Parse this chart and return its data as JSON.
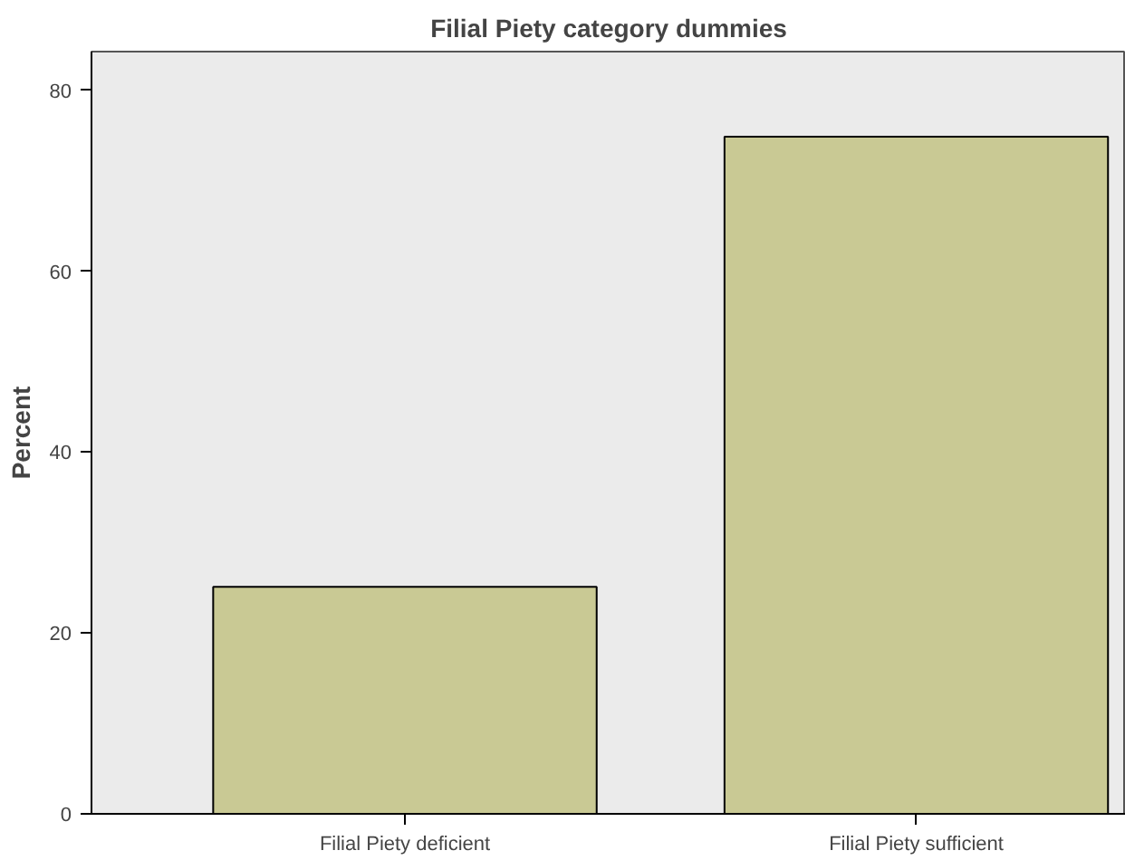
{
  "chart_data": {
    "type": "bar",
    "title": "Filial Piety category dummies",
    "ylabel": "Percent",
    "categories": [
      "Filial Piety deficient",
      "Filial Piety sufficient"
    ],
    "values": [
      25.1,
      74.9
    ],
    "color": "#c9c994",
    "ylim": [
      0,
      84.3
    ],
    "yticks": [
      0,
      20,
      40,
      60,
      80
    ],
    "grid": false
  }
}
